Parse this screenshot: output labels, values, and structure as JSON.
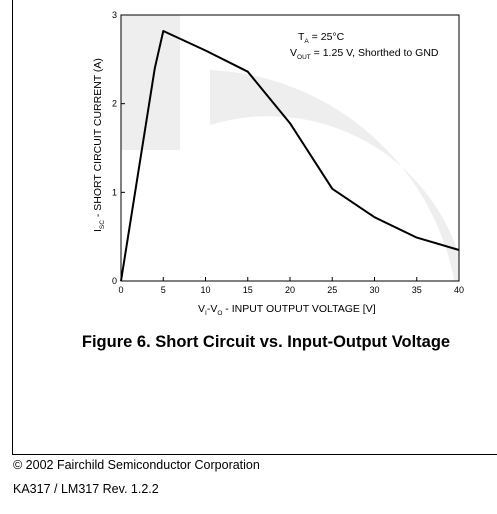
{
  "chart_data": {
    "type": "line",
    "x": [
      0,
      4,
      5,
      10,
      15,
      20,
      25,
      30,
      35,
      40
    ],
    "y": [
      0,
      2.4,
      2.82,
      2.6,
      2.36,
      1.78,
      1.04,
      0.72,
      0.49,
      0.35
    ],
    "xlim": [
      0,
      40
    ],
    "ylim": [
      0,
      3
    ],
    "x_ticks": [
      "0",
      "5",
      "10",
      "15",
      "20",
      "25",
      "30",
      "35",
      "40"
    ],
    "y_ticks": [
      "0",
      "1",
      "2",
      "3"
    ],
    "grid": false,
    "ylabel": {
      "main": "I",
      "sub": "SC",
      "rest": " - SHORT CIRCUIT CURRENT (A)"
    },
    "xlabel": {
      "p1": "V",
      "s1": "I",
      "p2": "-V",
      "s2": "O",
      "p3": " - INPUT OUTPUT VOLTAGE [V]"
    },
    "annotation": {
      "line1": {
        "main": "T",
        "sub": "A",
        "rest": " = 25°C"
      },
      "line2": {
        "main": "V",
        "sub": "OUT",
        "rest": " = 1.25 V, Shorthed to GND"
      }
    },
    "line_color": "#000000"
  },
  "caption": "Figure 6. Short Circuit vs. Input-Output Voltage",
  "footer": {
    "copyright": "© 2002 Fairchild Semiconductor Corporation",
    "revision": "KA317 / LM317 Rev. 1.2.2"
  },
  "colors": {
    "watermark": "#eeeeee"
  }
}
